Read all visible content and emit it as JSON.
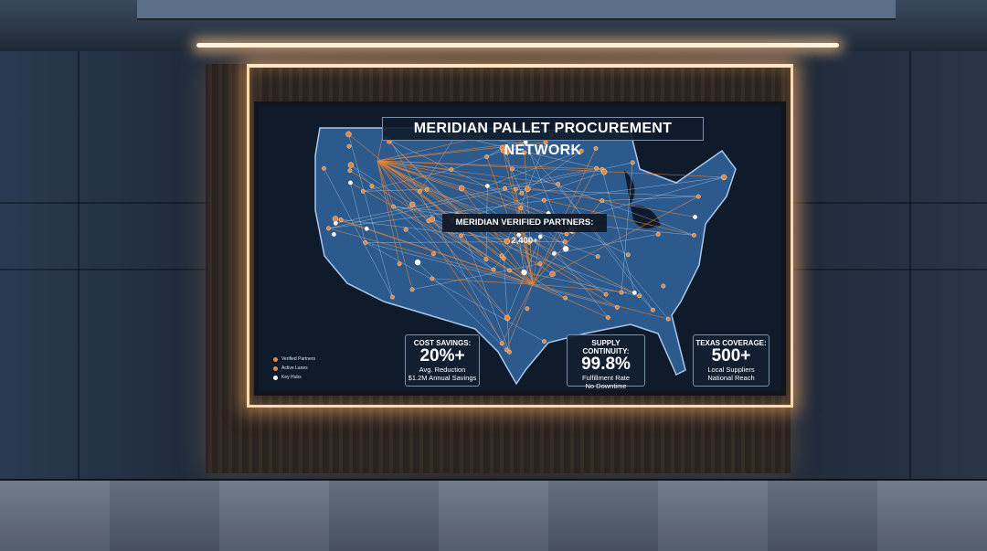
{
  "display": {
    "title": "MERIDIAN PALLET PROCUREMENT NETWORK",
    "partners_banner": "MERIDIAN VERIFIED PARTNERS: 2,400+",
    "legend": [
      {
        "label": "Verified Partners",
        "color": "#e8873a"
      },
      {
        "label": "Active Lanes",
        "color": "#e8873a"
      },
      {
        "label": "Key Hubs",
        "color": "#ffffff"
      }
    ],
    "stats": [
      {
        "heading": "COST SAVINGS:",
        "value": "20%+",
        "line1": "Avg. Reduction",
        "line2": "$1.2M Annual Savings"
      },
      {
        "heading": "SUPPLY CONTINUITY:",
        "value": "99.8%",
        "line1": "Fulfillment Rate",
        "line2": "No Downtime"
      },
      {
        "heading": "TEXAS COVERAGE:",
        "value": "500+",
        "line1": "Local Suppliers",
        "line2": "National Reach"
      }
    ],
    "colors": {
      "accent": "#e8873a",
      "map_land": "#2c5a8c",
      "screen_bg": "#0f1a2a"
    }
  }
}
